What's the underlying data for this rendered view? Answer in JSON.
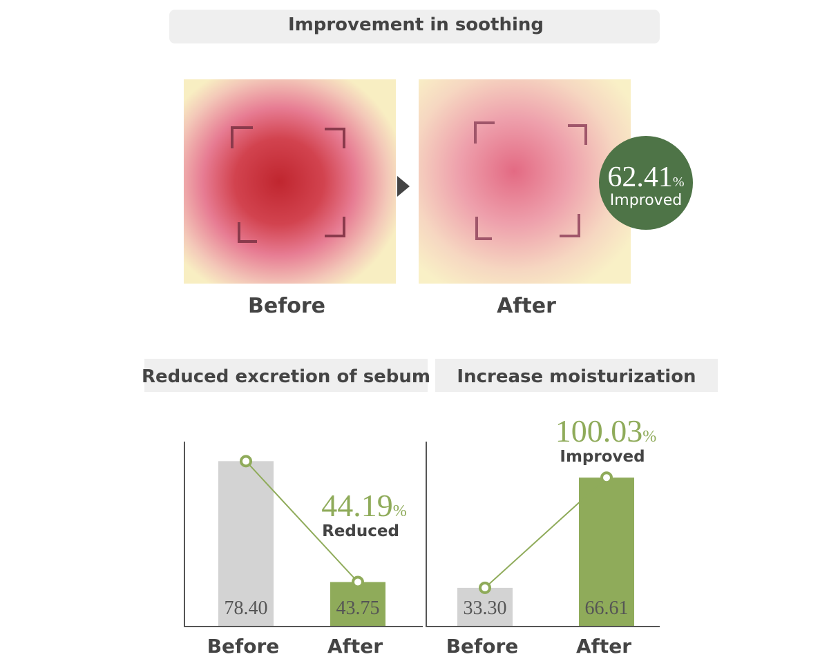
{
  "soothing": {
    "title": "Improvement in soothing",
    "before_label": "Before",
    "after_label": "After",
    "badge": {
      "value": "62.41",
      "unit": "%",
      "text": "Improved"
    }
  },
  "chart_data": [
    {
      "type": "bar",
      "title": "Reduced excretion of sebum",
      "categories": [
        "Before",
        "After"
      ],
      "values": [
        78.4,
        43.75
      ],
      "value_labels": [
        "78.40",
        "43.75"
      ],
      "colors": [
        "#d3d3d3",
        "#8fab5a"
      ],
      "line_color": "#8fab5a",
      "ylim": [
        31,
        84
      ],
      "annotation": {
        "value": "44.19",
        "unit": "%",
        "text": "Reduced"
      }
    },
    {
      "type": "bar",
      "title": "Increase moisturization",
      "categories": [
        "Before",
        "After"
      ],
      "values": [
        33.3,
        66.61
      ],
      "value_labels": [
        "33.30",
        "66.61"
      ],
      "colors": [
        "#d3d3d3",
        "#8fab5a"
      ],
      "line_color": "#8fab5a",
      "ylim": [
        21.6,
        77.5
      ],
      "annotation": {
        "value": "100.03",
        "unit": "%",
        "text": "Improved"
      }
    }
  ]
}
